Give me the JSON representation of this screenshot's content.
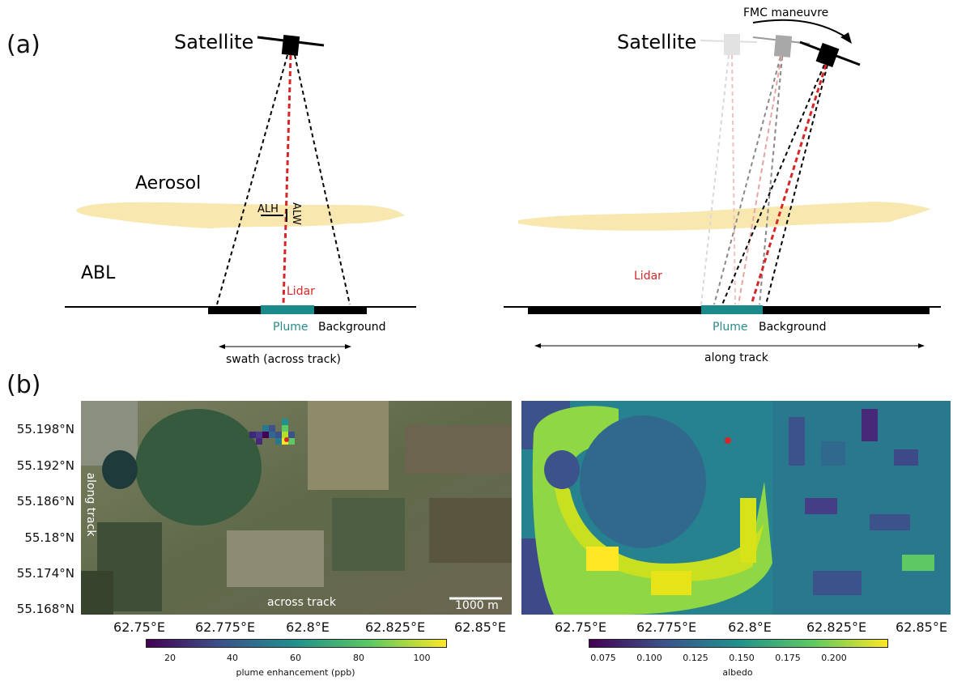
{
  "panels": {
    "a_label": "(a)",
    "b_label": "(b)"
  },
  "diagram_left": {
    "satellite": "Satellite",
    "aerosol": "Aerosol",
    "abl": "ABL",
    "alh": "ALH",
    "alw": "ALW",
    "lidar": "Lidar",
    "plume": "Plume",
    "background": "Background",
    "swath": "swath (across track)"
  },
  "diagram_right": {
    "satellite": "Satellite",
    "fmc": "FMC maneuvre",
    "lidar": "Lidar",
    "plume": "Plume",
    "background": "Background",
    "along_track": "along track"
  },
  "map_left": {
    "y_ticks": [
      "55.198°N",
      "55.192°N",
      "55.186°N",
      "55.18°N",
      "55.174°N",
      "55.168°N"
    ],
    "x_ticks": [
      "62.75°E",
      "62.775°E",
      "62.8°E",
      "62.825°E",
      "62.85°E"
    ],
    "along_track": "along track",
    "across_track": "across track",
    "scale_bar": "1000 m",
    "colorbar_ticks": [
      "20",
      "40",
      "60",
      "80",
      "100"
    ],
    "colorbar_label": "plume enhancement (ppb)"
  },
  "map_right": {
    "x_ticks": [
      "62.75°E",
      "62.775°E",
      "62.8°E",
      "62.825°E",
      "62.85°E"
    ],
    "colorbar_ticks": [
      "0.075",
      "0.100",
      "0.125",
      "0.150",
      "0.175",
      "0.200"
    ],
    "colorbar_label": "albedo"
  },
  "colors": {
    "lidar_red": "#d62728",
    "plume_teal": "#1a8a8a",
    "aerosol_yellow": "#f8e8b0",
    "plume_text": "#2a8a8a"
  }
}
